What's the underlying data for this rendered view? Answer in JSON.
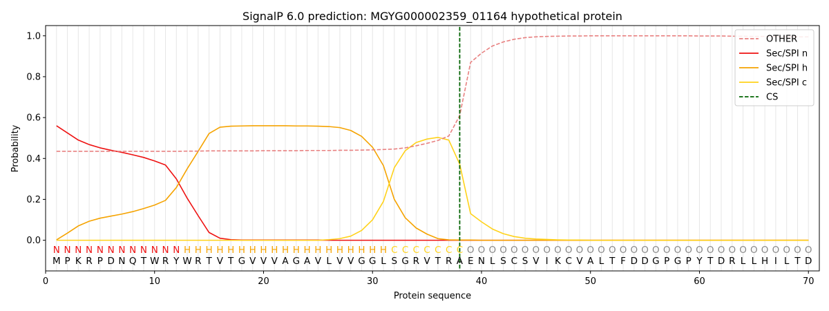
{
  "chart_data": {
    "type": "line",
    "title": "SignalP 6.0 prediction: MGYG000002359_01164 hypothetical protein",
    "xlabel": "Protein sequence",
    "ylabel": "Probability",
    "xlim": [
      0,
      71
    ],
    "ylim": [
      -0.15,
      1.05
    ],
    "xticks": [
      0,
      10,
      20,
      30,
      40,
      50,
      60,
      70
    ],
    "yticks": [
      0.0,
      0.2,
      0.4,
      0.6,
      0.8,
      1.0
    ],
    "legend_position": "top-right",
    "grid": "vertical lines at each residue",
    "x": [
      1,
      2,
      3,
      4,
      5,
      6,
      7,
      8,
      9,
      10,
      11,
      12,
      13,
      14,
      15,
      16,
      17,
      18,
      19,
      20,
      21,
      22,
      23,
      24,
      25,
      26,
      27,
      28,
      29,
      30,
      31,
      32,
      33,
      34,
      35,
      36,
      37,
      38,
      39,
      40,
      41,
      42,
      43,
      44,
      45,
      46,
      47,
      48,
      49,
      50,
      51,
      52,
      53,
      54,
      55,
      56,
      57,
      58,
      59,
      60,
      61,
      62,
      63,
      64,
      65,
      66,
      67,
      68,
      69,
      70
    ],
    "series": [
      {
        "name": "OTHER",
        "color": "#e88080",
        "dash": "dashed",
        "values": [
          0.435,
          0.435,
          0.435,
          0.435,
          0.435,
          0.435,
          0.435,
          0.435,
          0.435,
          0.435,
          0.435,
          0.435,
          0.436,
          0.436,
          0.437,
          0.437,
          0.437,
          0.437,
          0.437,
          0.438,
          0.438,
          0.438,
          0.438,
          0.439,
          0.439,
          0.439,
          0.44,
          0.44,
          0.441,
          0.442,
          0.444,
          0.446,
          0.452,
          0.462,
          0.474,
          0.488,
          0.51,
          0.61,
          0.87,
          0.915,
          0.95,
          0.97,
          0.983,
          0.991,
          0.995,
          0.997,
          0.998,
          0.999,
          0.999,
          1.0,
          1.0,
          1.0,
          1.0,
          1.0,
          1.0,
          1.0,
          1.0,
          1.0,
          1.0,
          0.999,
          0.999,
          0.999,
          0.998,
          0.998,
          0.997,
          0.997,
          0.996,
          0.996,
          0.995,
          0.995
        ]
      },
      {
        "name": "Sec/SPI n",
        "color": "#ee1111",
        "dash": "solid",
        "values": [
          0.56,
          0.525,
          0.49,
          0.468,
          0.452,
          0.44,
          0.43,
          0.418,
          0.405,
          0.388,
          0.368,
          0.3,
          0.205,
          0.12,
          0.038,
          0.01,
          0.003,
          0.001,
          0.001,
          0.001,
          0.001,
          0.001,
          0.001,
          0.001,
          0.001,
          0.0,
          0.0,
          0.0,
          0.0,
          0.0,
          0.0,
          0.0,
          0.0,
          0.0,
          0.0,
          0.0,
          0.0,
          0.0,
          0.0,
          0.0,
          0.0,
          0.0,
          0.0,
          0.0,
          0.0,
          0.0,
          0.0,
          0.0,
          0.0,
          0.0,
          0.0,
          0.0,
          0.0,
          0.0,
          0.0,
          0.0,
          0.0,
          0.0,
          0.0,
          0.0,
          0.0,
          0.0,
          0.0,
          0.0,
          0.0,
          0.0,
          0.0,
          0.0,
          0.0,
          0.0
        ]
      },
      {
        "name": "Sec/SPI h",
        "color": "#f5a300",
        "dash": "solid",
        "values": [
          0.002,
          0.035,
          0.07,
          0.093,
          0.108,
          0.118,
          0.128,
          0.14,
          0.155,
          0.172,
          0.195,
          0.258,
          0.35,
          0.435,
          0.522,
          0.553,
          0.558,
          0.559,
          0.56,
          0.56,
          0.56,
          0.56,
          0.559,
          0.559,
          0.558,
          0.556,
          0.551,
          0.537,
          0.508,
          0.455,
          0.365,
          0.2,
          0.11,
          0.06,
          0.03,
          0.008,
          0.002,
          0.001,
          0.001,
          0.0,
          0.0,
          0.0,
          0.0,
          0.0,
          0.0,
          0.0,
          0.0,
          0.0,
          0.0,
          0.0,
          0.0,
          0.0,
          0.0,
          0.0,
          0.0,
          0.0,
          0.0,
          0.0,
          0.0,
          0.0,
          0.0,
          0.0,
          0.0,
          0.0,
          0.0,
          0.0,
          0.0,
          0.0,
          0.0,
          0.0
        ]
      },
      {
        "name": "Sec/SPI c",
        "color": "#ffd21a",
        "dash": "solid",
        "values": [
          0.0,
          0.0,
          0.0,
          0.0,
          0.0,
          0.0,
          0.0,
          0.0,
          0.0,
          0.0,
          0.0,
          0.0,
          0.0,
          0.0,
          0.0,
          0.0,
          0.0,
          0.0,
          0.0,
          0.0,
          0.0,
          0.0,
          0.0,
          0.0,
          0.0,
          0.003,
          0.008,
          0.02,
          0.048,
          0.1,
          0.19,
          0.355,
          0.438,
          0.478,
          0.495,
          0.503,
          0.49,
          0.372,
          0.13,
          0.09,
          0.055,
          0.032,
          0.018,
          0.01,
          0.006,
          0.004,
          0.002,
          0.001,
          0.001,
          0.0,
          0.0,
          0.0,
          0.0,
          0.0,
          0.0,
          0.0,
          0.0,
          0.0,
          0.0,
          0.0,
          0.0,
          0.0,
          0.0,
          0.0,
          0.0,
          0.0,
          0.0,
          0.0,
          0.0,
          0.0
        ]
      },
      {
        "name": "CS",
        "color": "#006400",
        "dash": "dashed",
        "vertical_x": 38
      }
    ],
    "annotations": {
      "region_labels": [
        "N",
        "N",
        "N",
        "N",
        "N",
        "N",
        "N",
        "N",
        "N",
        "N",
        "N",
        "N",
        "H",
        "H",
        "H",
        "H",
        "H",
        "H",
        "H",
        "H",
        "H",
        "H",
        "H",
        "H",
        "H",
        "H",
        "H",
        "H",
        "H",
        "H",
        "H",
        "C",
        "C",
        "C",
        "C",
        "C",
        "C",
        "C",
        "O",
        "O",
        "O",
        "O",
        "O",
        "O",
        "O",
        "O",
        "O",
        "O",
        "O",
        "O",
        "O",
        "O",
        "O",
        "O",
        "O",
        "O",
        "O",
        "O",
        "O",
        "O",
        "O",
        "O",
        "O",
        "O",
        "O",
        "O",
        "O",
        "O",
        "O",
        "O"
      ],
      "region_colors": {
        "N": "#ee1111",
        "H": "#f5a300",
        "C": "#ffd21a",
        "O": "#888888"
      },
      "residues": [
        "M",
        "P",
        "K",
        "R",
        "P",
        "D",
        "N",
        "Q",
        "T",
        "W",
        "R",
        "Y",
        "W",
        "R",
        "T",
        "V",
        "T",
        "G",
        "V",
        "V",
        "V",
        "A",
        "G",
        "A",
        "V",
        "L",
        "V",
        "V",
        "G",
        "G",
        "L",
        "S",
        "G",
        "R",
        "V",
        "T",
        "R",
        "A",
        "E",
        "N",
        "L",
        "S",
        "C",
        "S",
        "V",
        "I",
        "K",
        "C",
        "V",
        "A",
        "L",
        "T",
        "F",
        "D",
        "D",
        "G",
        "P",
        "G",
        "P",
        "Y",
        "T",
        "D",
        "R",
        "L",
        "L",
        "H",
        "I",
        "L",
        "T",
        "D"
      ]
    }
  }
}
